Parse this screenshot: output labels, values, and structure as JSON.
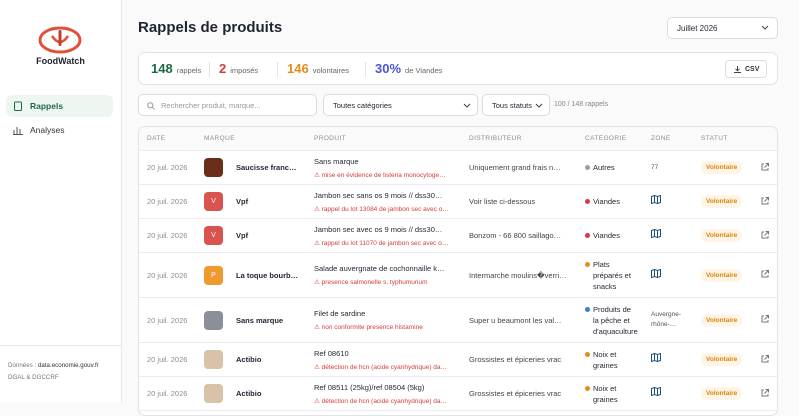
{
  "sidebar": {
    "logo": "FoodWatch",
    "nav": [
      "Rappels",
      "Analyses"
    ],
    "footer_prefix": "Données :",
    "footer_link": "data.economie.gouv.fr",
    "footer_source": "DGAL & DGCCRF"
  },
  "header": {
    "title": "Rappels de produits",
    "month": "Juillet 2026"
  },
  "stats": [
    {
      "value": "148",
      "label": "rappels",
      "color": "#1d6b45"
    },
    {
      "value": "2",
      "label": "imposés",
      "color": "#d43c3c"
    },
    {
      "value": "146",
      "label": "volontaires",
      "color": "#e0901a"
    },
    {
      "value": "30%",
      "label": "de Viandes",
      "color": "#4a55d6"
    }
  ],
  "csv": "CSV",
  "filters": {
    "search": "Rechercher produit, marque...",
    "category": "Toutes catégories",
    "status": "Tous statuts",
    "count": "100 / 148 rappels"
  },
  "table": {
    "headers": [
      "DATE",
      "MARQUE",
      "PRODUIT",
      "DISTRIBUTEUR",
      "CATÉGORIE",
      "ZONE",
      "STATUT"
    ],
    "rows": [
      {
        "date": "20 juil. 2026",
        "brand_initial": null,
        "brand_color": "#6b2e1a",
        "brand": "Saucisse franc…",
        "product": "Sans marque",
        "reason": "mise en évidence de listeria monocytoge…",
        "distributor": "Uniquement grand frais n…",
        "category": "Autres",
        "category_color": "#9a9ca3",
        "zone": "77",
        "status": "Volontaire"
      },
      {
        "date": "20 juil. 2026",
        "brand_initial": "V",
        "brand_color": "#d9534f",
        "brand": "Vpf",
        "product": "Jambon sec sans os 9 mois // dss30…",
        "reason": "rappel du lot 13084 de jambon sec avec o…",
        "distributor": "Voir liste ci-dessous",
        "category": "Viandes",
        "category_color": "#d43c3c",
        "zone": null,
        "status": "Volontaire"
      },
      {
        "date": "20 juil. 2026",
        "brand_initial": "V",
        "brand_color": "#d9534f",
        "brand": "Vpf",
        "product": "Jambon sec avec os 9 mois // dss30…",
        "reason": "rappel du lot 11070 de jambon sec avec o…",
        "distributor": "Bonzom - 66 800 saillago…",
        "category": "Viandes",
        "category_color": "#d43c3c",
        "zone": null,
        "status": "Volontaire"
      },
      {
        "date": "20 juil. 2026",
        "brand_initial": "P",
        "brand_color": "#ef9a2f",
        "brand": "La toque bourb…",
        "product": "Salade auvergnate de cochonnaille k…",
        "reason": "presence salmonelle s. typhumurium",
        "distributor": "Intermarche moulins�verri…",
        "category": "Plats préparés et snacks",
        "category_color": "#e0901a",
        "zone": null,
        "status": "Volontaire"
      },
      {
        "date": "20 juil. 2026",
        "brand_initial": null,
        "brand_color": "#8c8f99",
        "brand": "Sans marque",
        "product": "Filet de sardine",
        "reason": "non conformite presence histamine",
        "distributor": "Super u beaumont les val…",
        "category": "Produits de la pêche et d'aquaculture",
        "category_color": "#3b7dd8",
        "zone": "Auvergne-rhône-…",
        "status": "Volontaire"
      },
      {
        "date": "20 juil. 2026",
        "brand_initial": null,
        "brand_color": "#d8c2a8",
        "brand": "Actibio",
        "product": "Ref 08610",
        "reason": "détection de hcn (acide cyanhydrique) da…",
        "distributor": "Grossistes et épiceries vrac",
        "category": "Noix et graines",
        "category_color": "#e0901a",
        "zone": null,
        "status": "Volontaire"
      },
      {
        "date": "20 juil. 2026",
        "brand_initial": null,
        "brand_color": "#d8c2a8",
        "brand": "Actibio",
        "product": "Ref 08511 (25kg)/ref 08504 (5kg)",
        "reason": "détection de hcn (acide cyanhydrique) da…",
        "distributor": "Grossistes et épiceries vrac",
        "category": "Noix et graines",
        "category_color": "#e0901a",
        "zone": null,
        "status": "Volontaire"
      }
    ]
  }
}
